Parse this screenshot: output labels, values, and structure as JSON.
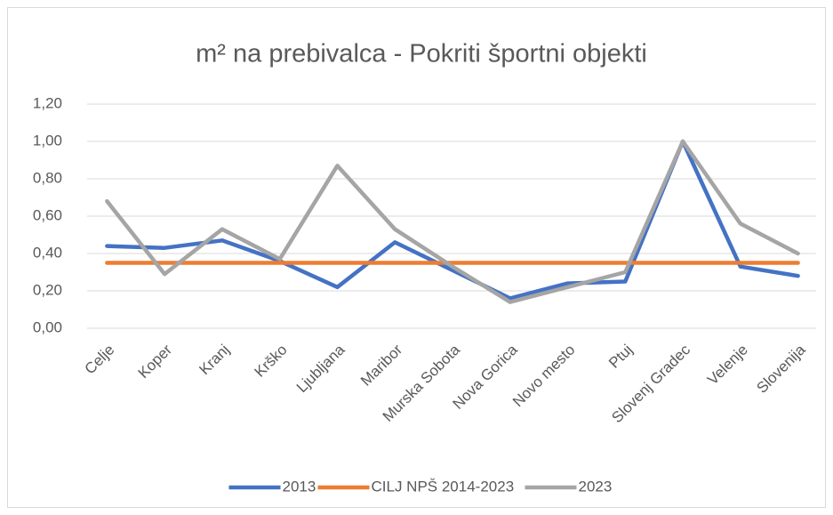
{
  "chart_data": {
    "type": "line",
    "title": "m² na prebivalca - Pokriti športni objekti",
    "categories": [
      "Celje",
      "Koper",
      "Kranj",
      "Krško",
      "Ljubljana",
      "Maribor",
      "Murska Sobota",
      "Nova Gorica",
      "Novo mesto",
      "Ptuj",
      "Slovenj Gradec",
      "Velenje",
      "Slovenija"
    ],
    "series": [
      {
        "name": "2013",
        "color": "#4472c4",
        "values": [
          0.44,
          0.43,
          0.47,
          0.36,
          0.22,
          0.46,
          0.31,
          0.16,
          0.24,
          0.25,
          1.0,
          0.33,
          0.28
        ]
      },
      {
        "name": "CILJ NPŠ 2014-2023",
        "color": "#ed7d31",
        "values": [
          0.35,
          0.35,
          0.35,
          0.35,
          0.35,
          0.35,
          0.35,
          0.35,
          0.35,
          0.35,
          0.35,
          0.35,
          0.35
        ]
      },
      {
        "name": "2023",
        "color": "#a5a5a5",
        "values": [
          0.68,
          0.29,
          0.53,
          0.37,
          0.87,
          0.53,
          0.33,
          0.14,
          0.22,
          0.3,
          1.0,
          0.56,
          0.4
        ]
      }
    ],
    "ylim": [
      0,
      1.2
    ],
    "yticks": [
      {
        "value": 0,
        "label": "0,00"
      },
      {
        "value": 0.2,
        "label": "0,20"
      },
      {
        "value": 0.4,
        "label": "0,40"
      },
      {
        "value": 0.6,
        "label": "0,60"
      },
      {
        "value": 0.8,
        "label": "0,80"
      },
      {
        "value": 1.0,
        "label": "1,00"
      },
      {
        "value": 1.2,
        "label": "1,20"
      }
    ],
    "grid": true,
    "legend": "bottom"
  }
}
